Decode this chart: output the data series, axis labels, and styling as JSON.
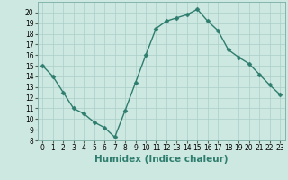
{
  "x": [
    0,
    1,
    2,
    3,
    4,
    5,
    6,
    7,
    8,
    9,
    10,
    11,
    12,
    13,
    14,
    15,
    16,
    17,
    18,
    19,
    20,
    21,
    22,
    23
  ],
  "y": [
    15,
    14,
    12.5,
    11,
    10.5,
    9.7,
    9.2,
    8.3,
    10.8,
    13.4,
    16.0,
    18.5,
    19.2,
    19.5,
    19.8,
    20.3,
    19.2,
    18.3,
    16.5,
    15.8,
    15.2,
    14.2,
    13.2,
    12.3
  ],
  "line_color": "#2e7d6e",
  "marker": "D",
  "marker_size": 2.5,
  "bg_color": "#cce8e0",
  "grid_color": "#aacfc7",
  "xlabel": "Humidex (Indice chaleur)",
  "xlim": [
    -0.5,
    23.5
  ],
  "ylim": [
    8,
    21
  ],
  "yticks": [
    8,
    9,
    10,
    11,
    12,
    13,
    14,
    15,
    16,
    17,
    18,
    19,
    20
  ],
  "xticks": [
    0,
    1,
    2,
    3,
    4,
    5,
    6,
    7,
    8,
    9,
    10,
    11,
    12,
    13,
    14,
    15,
    16,
    17,
    18,
    19,
    20,
    21,
    22,
    23
  ],
  "tick_fontsize": 5.5,
  "xlabel_fontsize": 7.5,
  "line_width": 1.0
}
